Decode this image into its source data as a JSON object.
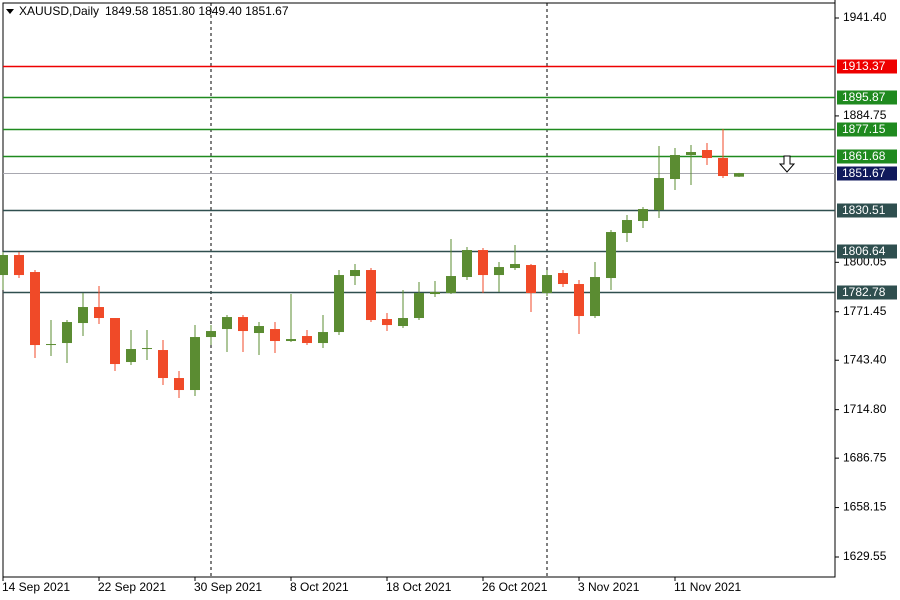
{
  "chart_data": {
    "type": "candlestick",
    "title": "XAUUSD,Daily",
    "subtitle": "1849.58 1851.80 1849.40 1851.67",
    "categories": [
      "14 Sep 2021",
      null,
      null,
      null,
      null,
      null,
      "22 Sep 2021",
      null,
      null,
      null,
      null,
      null,
      "30 Sep 2021",
      null,
      null,
      null,
      null,
      null,
      "8 Oct 2021",
      null,
      null,
      null,
      null,
      null,
      "18 Oct 2021",
      null,
      null,
      null,
      null,
      null,
      "26 Oct 2021",
      null,
      null,
      null,
      null,
      null,
      "3 Nov 2021",
      null,
      null,
      null,
      null,
      null,
      "11 Nov 2021",
      null,
      null,
      null,
      null
    ],
    "open": [
      1792.69,
      1804.27,
      1794.43,
      1752.19,
      1753.35,
      1764.92,
      1774.18,
      1767.82,
      1742.36,
      1749.88,
      1749.3,
      1733.1,
      1726.16,
      1756.82,
      1761.45,
      1768.39,
      1759.14,
      1761.45,
      1754.51,
      1757.4,
      1753.35,
      1759.71,
      1792.12,
      1795.59,
      1767.24,
      1763.19,
      1767.82,
      1781.7,
      1782.28,
      1791.54,
      1807.16,
      1792.69,
      1796.75,
      1798.48,
      1782.28,
      1793.85,
      1787.49,
      1768.97,
      1790.96,
      1817.0,
      1823.94,
      1830.3,
      1848.24,
      1862.13,
      1865.02,
      1860.39,
      1849.58
    ],
    "high": [
      1806.0,
      1806.0,
      1795.59,
      1766.66,
      1766.66,
      1782.28,
      1786.33,
      1767.82,
      1760.87,
      1760.87,
      1755.09,
      1737.15,
      1763.76,
      1763.76,
      1769.55,
      1769.55,
      1765.5,
      1765.5,
      1781.7,
      1760.87,
      1769.55,
      1795.59,
      1799.06,
      1796.75,
      1770.71,
      1784.02,
      1788.64,
      1789.22,
      1813.52,
      1808.9,
      1808.32,
      1800.22,
      1810.05,
      1799.06,
      1795.59,
      1795.59,
      1789.8,
      1800.22,
      1818.73,
      1827.41,
      1832.04,
      1867.33,
      1866.18,
      1867.91,
      1869.07,
      1877.17,
      1851.8
    ],
    "low": [
      1784.02,
      1790.96,
      1744.67,
      1745.83,
      1741.78,
      1757.4,
      1764.34,
      1737.15,
      1740.62,
      1743.51,
      1729.05,
      1721.53,
      1722.68,
      1752.19,
      1748.14,
      1748.14,
      1746.41,
      1747.56,
      1753.93,
      1752.19,
      1750.46,
      1757.98,
      1786.91,
      1765.5,
      1760.29,
      1762.03,
      1766.66,
      1779.97,
      1781.7,
      1789.8,
      1782.28,
      1782.86,
      1795.59,
      1771.29,
      1780.54,
      1785.75,
      1758.56,
      1767.82,
      1784.02,
      1811.79,
      1819.89,
      1825.68,
      1841.88,
      1844.77,
      1856.34,
      1848.82,
      1849.4
    ],
    "close": [
      1804.27,
      1792.69,
      1752.19,
      1752.77,
      1765.5,
      1774.18,
      1767.82,
      1741.2,
      1749.88,
      1750.46,
      1733.1,
      1726.16,
      1756.82,
      1760.29,
      1768.39,
      1760.29,
      1763.19,
      1754.51,
      1755.66,
      1753.35,
      1759.71,
      1792.69,
      1795.59,
      1766.66,
      1763.76,
      1767.82,
      1782.28,
      1782.86,
      1792.12,
      1807.16,
      1792.69,
      1797.32,
      1799.06,
      1782.28,
      1792.69,
      1787.49,
      1768.97,
      1791.54,
      1817.57,
      1824.52,
      1830.88,
      1848.82,
      1862.13,
      1863.86,
      1860.39,
      1849.98,
      1851.67
    ],
    "up_color": "#5b8c32",
    "down_color": "#f04a28",
    "ylim": [
      1617.98,
      1950.08
    ],
    "yticks": [
      {
        "value": 1941.4,
        "label": "1941.40"
      },
      1884.75,
      1800.05,
      1771.45,
      {
        "value": 1743.4,
        "label": "1743.40"
      },
      {
        "value": 1714.8,
        "label": "1714.80"
      },
      1686.75,
      1658.15,
      1629.55
    ],
    "levels": [
      {
        "value": 1913.37,
        "color": "#ee0000"
      },
      {
        "value": 1895.87,
        "color": "#1f8a1f"
      },
      {
        "value": 1877.15,
        "color": "#1f8a1f"
      },
      {
        "value": 1861.68,
        "color": "#1f8a1f"
      },
      {
        "value": 1830.51,
        "color": "#2f4f4f"
      },
      {
        "value": 1806.64,
        "color": "#2f4f4f"
      },
      {
        "value": 1782.78,
        "color": "#2f4f4f"
      }
    ],
    "last_price": {
      "value": 1851.67,
      "color": "#101a5c",
      "line_color": "#a8a8b0"
    }
  }
}
